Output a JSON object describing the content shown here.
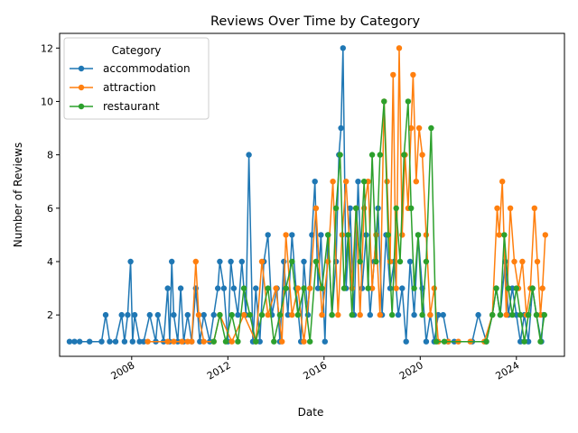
{
  "chart_data": {
    "type": "line",
    "title": "Reviews Over Time by Category",
    "xlabel": "Date",
    "ylabel": "Number of Reviews",
    "xlim": [
      "2005-01-01",
      "2025-12-31"
    ],
    "ylim": [
      0.45,
      12.55
    ],
    "x_ticks": [
      "2008-01-01",
      "2012-01-01",
      "2016-01-01",
      "2020-01-01",
      "2024-01-01"
    ],
    "x_tick_labels": [
      "2008",
      "2012",
      "2016",
      "2020",
      "2024"
    ],
    "y_ticks": [
      2,
      4,
      6,
      8,
      10,
      12
    ],
    "y_tick_labels": [
      "2",
      "4",
      "6",
      "8",
      "10",
      "12"
    ],
    "grid": false,
    "legend": {
      "title": "Category",
      "position": "top-left"
    },
    "series": [
      {
        "name": "accommodation",
        "color": "#1f77b4",
        "points": [
          [
            "2005-06-01",
            1
          ],
          [
            "2005-08-15",
            1
          ],
          [
            "2005-11-01",
            1
          ],
          [
            "2006-04-01",
            1
          ],
          [
            "2006-10-01",
            1
          ],
          [
            "2006-12-01",
            2
          ],
          [
            "2007-02-01",
            1
          ],
          [
            "2007-05-01",
            1
          ],
          [
            "2007-08-01",
            2
          ],
          [
            "2007-09-15",
            1
          ],
          [
            "2007-11-01",
            2
          ],
          [
            "2007-12-15",
            4
          ],
          [
            "2008-01-15",
            1
          ],
          [
            "2008-02-15",
            2
          ],
          [
            "2008-05-01",
            1
          ],
          [
            "2008-07-01",
            1
          ],
          [
            "2008-10-01",
            2
          ],
          [
            "2009-01-01",
            1
          ],
          [
            "2009-02-01",
            2
          ],
          [
            "2009-05-01",
            1
          ],
          [
            "2009-07-01",
            3
          ],
          [
            "2009-08-01",
            1
          ],
          [
            "2009-09-01",
            4
          ],
          [
            "2009-10-01",
            2
          ],
          [
            "2009-12-01",
            1
          ],
          [
            "2010-01-15",
            3
          ],
          [
            "2010-03-01",
            1
          ],
          [
            "2010-05-01",
            2
          ],
          [
            "2010-07-01",
            1
          ],
          [
            "2010-09-01",
            3
          ],
          [
            "2010-11-01",
            1
          ],
          [
            "2011-01-01",
            2
          ],
          [
            "2011-04-01",
            1
          ],
          [
            "2011-06-01",
            2
          ],
          [
            "2011-08-01",
            3
          ],
          [
            "2011-09-01",
            4
          ],
          [
            "2011-11-01",
            3
          ],
          [
            "2012-01-01",
            1
          ],
          [
            "2012-02-15",
            4
          ],
          [
            "2012-04-01",
            3
          ],
          [
            "2012-06-01",
            2
          ],
          [
            "2012-08-01",
            4
          ],
          [
            "2012-10-01",
            2
          ],
          [
            "2012-11-15",
            8
          ],
          [
            "2013-01-15",
            1
          ],
          [
            "2013-03-01",
            3
          ],
          [
            "2013-05-01",
            1
          ],
          [
            "2013-07-01",
            4
          ],
          [
            "2013-09-01",
            5
          ],
          [
            "2013-11-01",
            2
          ],
          [
            "2014-01-15",
            3
          ],
          [
            "2014-03-01",
            1
          ],
          [
            "2014-05-01",
            4
          ],
          [
            "2014-07-01",
            2
          ],
          [
            "2014-09-01",
            5
          ],
          [
            "2014-11-01",
            3
          ],
          [
            "2015-01-15",
            1
          ],
          [
            "2015-03-01",
            4
          ],
          [
            "2015-05-01",
            2
          ],
          [
            "2015-07-01",
            5
          ],
          [
            "2015-08-15",
            7
          ],
          [
            "2015-10-01",
            3
          ],
          [
            "2015-11-15",
            5
          ],
          [
            "2016-01-15",
            1
          ],
          [
            "2016-03-01",
            5
          ],
          [
            "2016-05-01",
            2
          ],
          [
            "2016-07-01",
            4
          ],
          [
            "2016-08-15",
            8
          ],
          [
            "2016-09-15",
            9
          ],
          [
            "2016-10-15",
            12
          ],
          [
            "2016-12-01",
            3
          ],
          [
            "2017-02-01",
            6
          ],
          [
            "2017-04-01",
            2
          ],
          [
            "2017-06-01",
            7
          ],
          [
            "2017-08-01",
            3
          ],
          [
            "2017-10-01",
            5
          ],
          [
            "2017-12-01",
            2
          ],
          [
            "2018-02-01",
            4
          ],
          [
            "2018-04-01",
            6
          ],
          [
            "2018-06-01",
            2
          ],
          [
            "2018-08-01",
            5
          ],
          [
            "2018-10-01",
            3
          ],
          [
            "2018-12-01",
            4
          ],
          [
            "2019-02-01",
            2
          ],
          [
            "2019-04-01",
            3
          ],
          [
            "2019-06-01",
            1
          ],
          [
            "2019-08-01",
            4
          ],
          [
            "2019-10-01",
            2
          ],
          [
            "2019-12-01",
            5
          ],
          [
            "2020-02-01",
            3
          ],
          [
            "2020-04-01",
            1
          ],
          [
            "2020-06-01",
            2
          ],
          [
            "2020-08-01",
            1
          ],
          [
            "2020-10-01",
            2
          ],
          [
            "2020-12-15",
            2
          ],
          [
            "2021-03-01",
            1
          ],
          [
            "2021-06-01",
            1
          ],
          [
            "2022-03-01",
            1
          ],
          [
            "2022-06-01",
            2
          ],
          [
            "2022-10-01",
            1
          ],
          [
            "2023-01-01",
            2
          ],
          [
            "2023-03-01",
            3
          ],
          [
            "2023-05-01",
            2
          ],
          [
            "2023-07-15",
            4
          ],
          [
            "2023-09-01",
            2
          ],
          [
            "2023-11-01",
            3
          ],
          [
            "2024-01-01",
            2
          ],
          [
            "2024-03-01",
            1
          ],
          [
            "2024-05-01",
            2
          ],
          [
            "2024-07-01",
            1
          ],
          [
            "2024-09-01",
            3
          ],
          [
            "2024-11-01",
            2
          ],
          [
            "2025-01-15",
            1
          ],
          [
            "2025-02-15",
            2
          ]
        ]
      },
      {
        "name": "attraction",
        "color": "#ff7f0e",
        "points": [
          [
            "2008-09-01",
            1
          ],
          [
            "2009-07-01",
            1
          ],
          [
            "2009-10-01",
            1
          ],
          [
            "2010-02-01",
            1
          ],
          [
            "2010-05-01",
            1
          ],
          [
            "2010-07-01",
            1
          ],
          [
            "2010-09-01",
            4
          ],
          [
            "2010-10-15",
            2
          ],
          [
            "2011-01-01",
            1
          ],
          [
            "2011-06-01",
            1
          ],
          [
            "2011-09-01",
            2
          ],
          [
            "2012-03-01",
            1
          ],
          [
            "2012-09-01",
            2
          ],
          [
            "2013-03-01",
            1
          ],
          [
            "2013-06-01",
            4
          ],
          [
            "2013-09-01",
            2
          ],
          [
            "2014-01-01",
            3
          ],
          [
            "2014-04-01",
            1
          ],
          [
            "2014-06-01",
            5
          ],
          [
            "2014-09-01",
            2
          ],
          [
            "2014-12-01",
            3
          ],
          [
            "2015-03-01",
            1
          ],
          [
            "2015-06-01",
            3
          ],
          [
            "2015-09-01",
            6
          ],
          [
            "2015-12-01",
            2
          ],
          [
            "2016-03-01",
            4
          ],
          [
            "2016-05-15",
            7
          ],
          [
            "2016-08-01",
            2
          ],
          [
            "2016-10-01",
            5
          ],
          [
            "2016-12-01",
            7
          ],
          [
            "2017-03-01",
            3
          ],
          [
            "2017-05-01",
            6
          ],
          [
            "2017-07-01",
            2
          ],
          [
            "2017-09-01",
            6
          ],
          [
            "2017-11-01",
            7
          ],
          [
            "2018-01-01",
            3
          ],
          [
            "2018-03-01",
            5
          ],
          [
            "2018-05-01",
            2
          ],
          [
            "2018-07-01",
            10
          ],
          [
            "2018-08-15",
            7
          ],
          [
            "2018-10-01",
            4
          ],
          [
            "2018-11-15",
            11
          ],
          [
            "2019-01-01",
            3
          ],
          [
            "2019-02-15",
            12
          ],
          [
            "2019-04-01",
            5
          ],
          [
            "2019-05-15",
            8
          ],
          [
            "2019-07-01",
            6
          ],
          [
            "2019-08-15",
            9
          ],
          [
            "2019-09-15",
            11
          ],
          [
            "2019-11-01",
            7
          ],
          [
            "2019-12-15",
            9
          ],
          [
            "2020-02-01",
            8
          ],
          [
            "2020-04-01",
            5
          ],
          [
            "2020-06-01",
            2
          ],
          [
            "2020-08-01",
            3
          ],
          [
            "2020-10-01",
            1
          ],
          [
            "2021-03-01",
            1
          ],
          [
            "2021-08-01",
            1
          ],
          [
            "2022-02-01",
            1
          ],
          [
            "2022-09-01",
            1
          ],
          [
            "2023-01-01",
            2
          ],
          [
            "2023-03-15",
            6
          ],
          [
            "2023-04-15",
            5
          ],
          [
            "2023-06-01",
            7
          ],
          [
            "2023-08-01",
            2
          ],
          [
            "2023-10-01",
            6
          ],
          [
            "2023-12-01",
            4
          ],
          [
            "2024-02-01",
            3
          ],
          [
            "2024-04-01",
            4
          ],
          [
            "2024-06-01",
            2
          ],
          [
            "2024-08-01",
            3
          ],
          [
            "2024-10-01",
            6
          ],
          [
            "2024-11-15",
            4
          ],
          [
            "2025-01-01",
            2
          ],
          [
            "2025-02-01",
            3
          ],
          [
            "2025-03-15",
            5
          ]
        ]
      },
      {
        "name": "restaurant",
        "color": "#2ca02c",
        "points": [
          [
            "2011-06-01",
            1
          ],
          [
            "2011-09-01",
            2
          ],
          [
            "2011-12-01",
            1
          ],
          [
            "2012-03-01",
            2
          ],
          [
            "2012-06-01",
            1
          ],
          [
            "2012-09-01",
            3
          ],
          [
            "2012-12-01",
            2
          ],
          [
            "2013-03-01",
            1
          ],
          [
            "2013-06-01",
            2
          ],
          [
            "2013-09-01",
            3
          ],
          [
            "2013-12-01",
            1
          ],
          [
            "2014-03-01",
            2
          ],
          [
            "2014-06-01",
            3
          ],
          [
            "2014-09-01",
            4
          ],
          [
            "2014-12-01",
            2
          ],
          [
            "2015-03-01",
            3
          ],
          [
            "2015-06-01",
            1
          ],
          [
            "2015-09-01",
            4
          ],
          [
            "2015-12-01",
            3
          ],
          [
            "2016-03-01",
            5
          ],
          [
            "2016-05-01",
            2
          ],
          [
            "2016-07-01",
            6
          ],
          [
            "2016-09-01",
            8
          ],
          [
            "2016-11-01",
            3
          ],
          [
            "2017-01-01",
            5
          ],
          [
            "2017-03-01",
            2
          ],
          [
            "2017-05-01",
            6
          ],
          [
            "2017-07-01",
            4
          ],
          [
            "2017-09-01",
            7
          ],
          [
            "2017-11-01",
            3
          ],
          [
            "2018-01-01",
            8
          ],
          [
            "2018-03-01",
            4
          ],
          [
            "2018-05-01",
            8
          ],
          [
            "2018-07-01",
            10
          ],
          [
            "2018-09-01",
            5
          ],
          [
            "2018-11-01",
            2
          ],
          [
            "2019-01-01",
            6
          ],
          [
            "2019-03-01",
            4
          ],
          [
            "2019-05-01",
            8
          ],
          [
            "2019-07-01",
            10
          ],
          [
            "2019-08-15",
            6
          ],
          [
            "2019-10-01",
            3
          ],
          [
            "2019-12-01",
            5
          ],
          [
            "2020-02-01",
            2
          ],
          [
            "2020-04-01",
            4
          ],
          [
            "2020-06-15",
            9
          ],
          [
            "2020-09-01",
            1
          ],
          [
            "2021-01-01",
            1
          ],
          [
            "2022-10-01",
            1
          ],
          [
            "2023-01-01",
            2
          ],
          [
            "2023-03-01",
            3
          ],
          [
            "2023-05-01",
            2
          ],
          [
            "2023-07-01",
            5
          ],
          [
            "2023-09-01",
            3
          ],
          [
            "2023-11-01",
            2
          ],
          [
            "2024-01-01",
            3
          ],
          [
            "2024-03-01",
            2
          ],
          [
            "2024-05-01",
            1
          ],
          [
            "2024-07-01",
            2
          ],
          [
            "2024-09-01",
            3
          ],
          [
            "2024-11-01",
            2
          ],
          [
            "2025-01-01",
            1
          ],
          [
            "2025-03-01",
            2
          ]
        ]
      }
    ]
  }
}
